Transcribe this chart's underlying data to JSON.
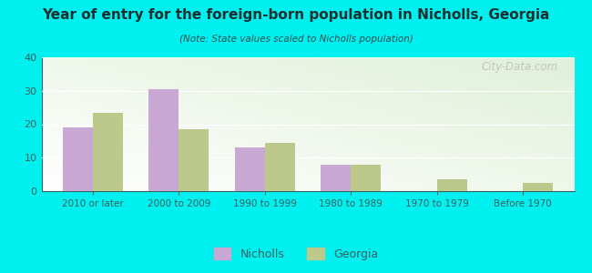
{
  "title": "Year of entry for the foreign-born population in Nicholls, Georgia",
  "subtitle": "(Note: State values scaled to Nicholls population)",
  "categories": [
    "2010 or later",
    "2000 to 2009",
    "1990 to 1999",
    "1980 to 1989",
    "1970 to 1979",
    "Before 1970"
  ],
  "nicholls_values": [
    19,
    30.5,
    13,
    8,
    0,
    0
  ],
  "georgia_values": [
    23.5,
    18.5,
    14.5,
    8,
    3.5,
    2.5
  ],
  "nicholls_color": "#c9a8d4",
  "georgia_color": "#bcc98a",
  "bar_width": 0.35,
  "ylim": [
    0,
    40
  ],
  "yticks": [
    0,
    10,
    20,
    30,
    40
  ],
  "bg_color": "#00efef",
  "title_color": "#1a3030",
  "subtitle_color": "#2a5050",
  "tick_color": "#3a6060",
  "watermark": "City-Data.com",
  "legend_nicholls": "Nicholls",
  "legend_georgia": "Georgia"
}
